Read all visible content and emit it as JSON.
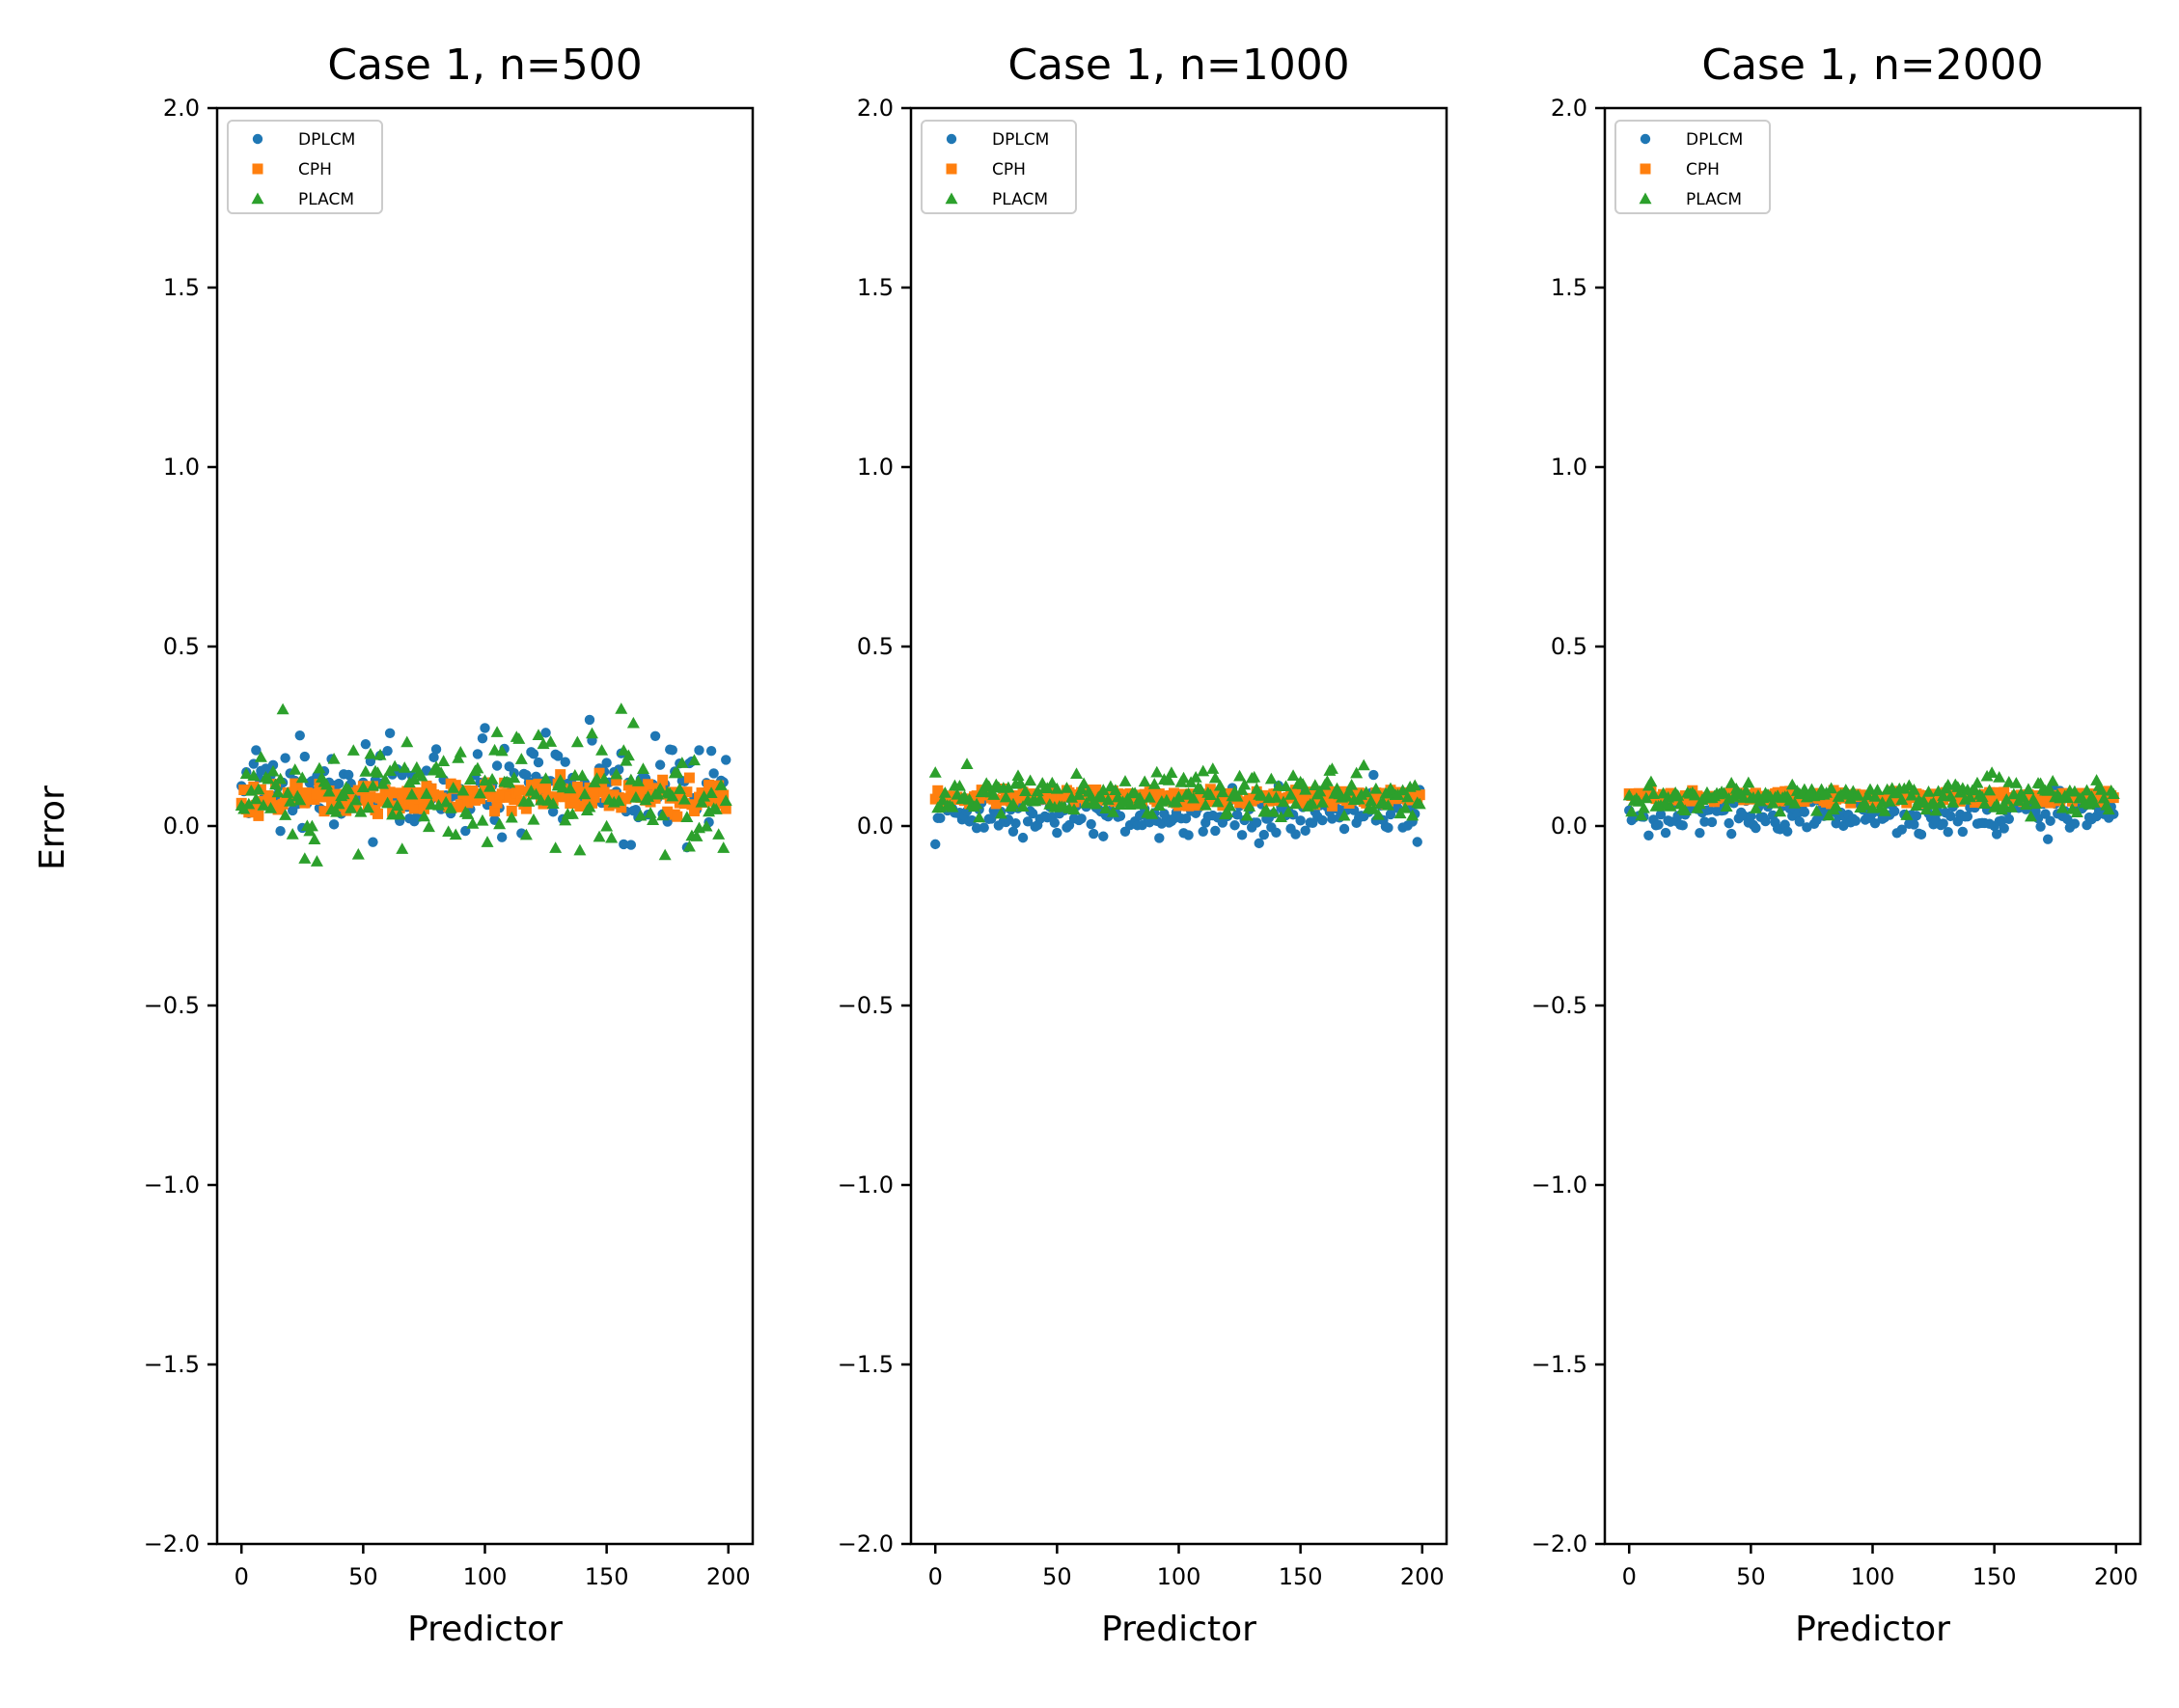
{
  "figure": {
    "ylabel": "Error"
  },
  "colors": {
    "DPLCM": "#1f77b4",
    "CPH": "#ff7f0e",
    "PLACM": "#2ca02c"
  },
  "chart_data": [
    {
      "type": "scatter",
      "title": "Case 1, n=500",
      "xlabel": "Predictor",
      "ylabel": "Error",
      "xlim": [
        -10,
        210
      ],
      "ylim": [
        -2.0,
        2.0
      ],
      "xticks": [
        0,
        50,
        100,
        150,
        200
      ],
      "yticks": [
        -2.0,
        -1.5,
        -1.0,
        -0.5,
        0.0,
        0.5,
        1.0,
        1.5,
        2.0
      ],
      "xtick_labels": [
        "0",
        "50",
        "100",
        "150",
        "200"
      ],
      "ytick_labels": [
        "−2.0",
        "−1.5",
        "−1.0",
        "−0.5",
        "0.0",
        "0.5",
        "1.0",
        "1.5",
        "2.0"
      ],
      "legend": {
        "position": "upper-left",
        "entries": [
          "DPLCM",
          "CPH",
          "PLACM"
        ]
      },
      "grid": false,
      "n_points": 200,
      "series": [
        {
          "name": "DPLCM",
          "marker": "circle",
          "center": 0.1,
          "spread": 0.12,
          "min": -0.06,
          "max": 0.31
        },
        {
          "name": "CPH",
          "marker": "square",
          "center": 0.08,
          "spread": 0.04,
          "min": 0.02,
          "max": 0.15
        },
        {
          "name": "PLACM",
          "marker": "triangle",
          "center": 0.1,
          "spread": 0.14,
          "min": -0.1,
          "max": 0.4
        }
      ]
    },
    {
      "type": "scatter",
      "title": "Case 1, n=1000",
      "xlabel": "Predictor",
      "ylabel": "",
      "xlim": [
        -10,
        210
      ],
      "ylim": [
        -2.0,
        2.0
      ],
      "xticks": [
        0,
        50,
        100,
        150,
        200
      ],
      "yticks": [
        -2.0,
        -1.5,
        -1.0,
        -0.5,
        0.0,
        0.5,
        1.0,
        1.5,
        2.0
      ],
      "xtick_labels": [
        "0",
        "50",
        "100",
        "150",
        "200"
      ],
      "ytick_labels": [
        "−2.0",
        "−1.5",
        "−1.0",
        "−0.5",
        "0.0",
        "0.5",
        "1.0",
        "1.5",
        "2.0"
      ],
      "legend": {
        "position": "upper-left",
        "entries": [
          "DPLCM",
          "CPH",
          "PLACM"
        ]
      },
      "grid": false,
      "n_points": 200,
      "series": [
        {
          "name": "DPLCM",
          "marker": "circle",
          "center": 0.03,
          "spread": 0.06,
          "min": -0.07,
          "max": 0.15
        },
        {
          "name": "CPH",
          "marker": "square",
          "center": 0.08,
          "spread": 0.02,
          "min": 0.05,
          "max": 0.11
        },
        {
          "name": "PLACM",
          "marker": "triangle",
          "center": 0.09,
          "spread": 0.06,
          "min": 0.02,
          "max": 0.24
        }
      ]
    },
    {
      "type": "scatter",
      "title": "Case 1, n=2000",
      "xlabel": "Predictor",
      "ylabel": "",
      "xlim": [
        -10,
        210
      ],
      "ylim": [
        -2.0,
        2.0
      ],
      "xticks": [
        0,
        50,
        100,
        150,
        200
      ],
      "yticks": [
        -2.0,
        -1.5,
        -1.0,
        -0.5,
        0.0,
        0.5,
        1.0,
        1.5,
        2.0
      ],
      "xtick_labels": [
        "0",
        "50",
        "100",
        "150",
        "200"
      ],
      "ytick_labels": [
        "−2.0",
        "−1.5",
        "−1.0",
        "−0.5",
        "0.0",
        "0.5",
        "1.0",
        "1.5",
        "2.0"
      ],
      "legend": {
        "position": "upper-left",
        "entries": [
          "DPLCM",
          "CPH",
          "PLACM"
        ]
      },
      "grid": false,
      "n_points": 200,
      "series": [
        {
          "name": "DPLCM",
          "marker": "circle",
          "center": 0.03,
          "spread": 0.05,
          "min": -0.05,
          "max": 0.13
        },
        {
          "name": "CPH",
          "marker": "square",
          "center": 0.08,
          "spread": 0.015,
          "min": 0.06,
          "max": 0.1
        },
        {
          "name": "PLACM",
          "marker": "triangle",
          "center": 0.08,
          "spread": 0.04,
          "min": 0.02,
          "max": 0.18
        }
      ]
    }
  ]
}
